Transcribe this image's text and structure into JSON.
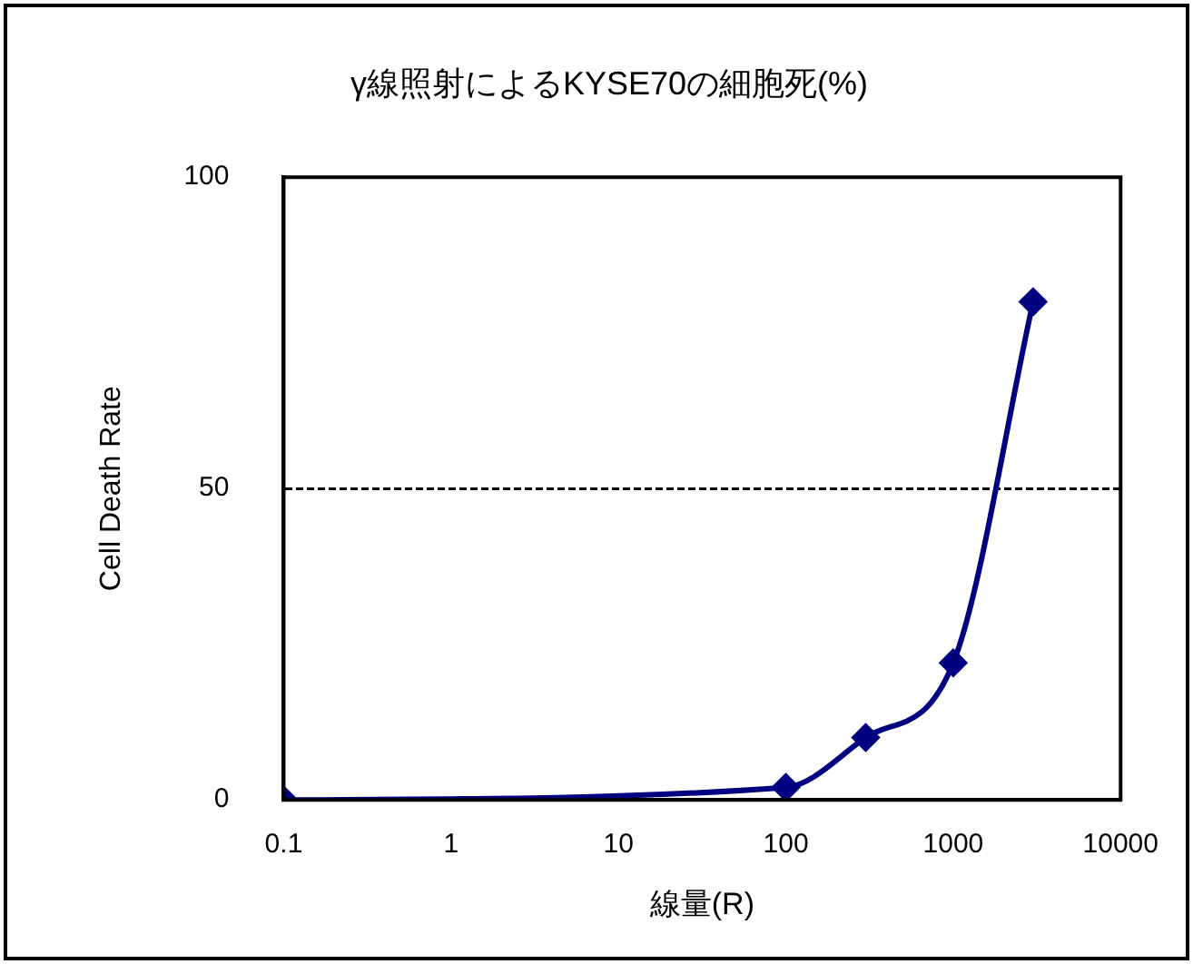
{
  "chart_data": {
    "type": "line",
    "title": "γ線照射によるKYSE70の細胞死(%)",
    "xlabel": "線量(R)",
    "ylabel": "Cell Death Rate",
    "x": [
      0.1,
      100,
      300,
      1000,
      3000
    ],
    "series": [
      {
        "color": "#000080",
        "values": [
          0,
          2,
          10,
          22,
          80
        ]
      }
    ],
    "log": "x",
    "xlim": [
      0.1,
      10000
    ],
    "xticks": [
      0.1,
      1,
      10,
      100,
      1000,
      10000
    ],
    "ylim": [
      0,
      100
    ],
    "yticks": [
      0,
      50,
      100
    ],
    "grid": "y",
    "marker": "diamond",
    "legend": false
  }
}
